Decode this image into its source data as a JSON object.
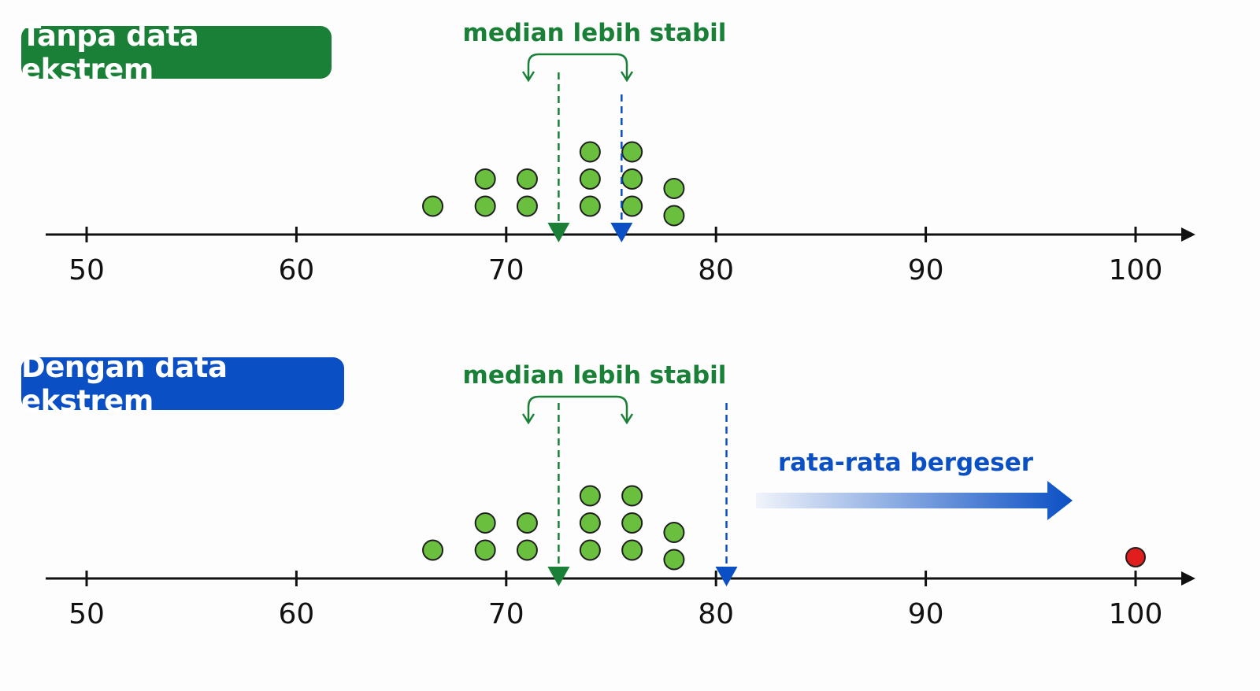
{
  "colors": {
    "green": "#1a8038",
    "blue": "#0a4fc4",
    "dot_fill": "#6bbf3f",
    "dot_stroke": "#1f1f1f",
    "outlier": "#e01e1e",
    "axis": "#111111"
  },
  "chart_data": [
    {
      "type": "scatter",
      "style": "dot-plot",
      "panel_label": "Tanpa data ekstrem",
      "annotation": "median lebih stabil",
      "xlim": [
        50,
        100
      ],
      "ticks": [
        50,
        60,
        70,
        80,
        90,
        100
      ],
      "tick_labels": [
        "50",
        "60",
        "70",
        "80",
        "90",
        "100"
      ],
      "points": [
        {
          "x": 66.5,
          "n": 1
        },
        {
          "x": 69,
          "n": 2
        },
        {
          "x": 71,
          "n": 2
        },
        {
          "x": 74,
          "n": 3
        },
        {
          "x": 76,
          "n": 3
        },
        {
          "x": 78,
          "n": 2
        }
      ],
      "median": 72.5,
      "mean": 75.5
    },
    {
      "type": "scatter",
      "style": "dot-plot",
      "panel_label": "Dengan data ekstrem",
      "annotation": "median lebih stabil",
      "shift_annotation": "rata-rata bergeser",
      "xlim": [
        50,
        100
      ],
      "ticks": [
        50,
        60,
        70,
        80,
        90,
        100
      ],
      "tick_labels": [
        "50",
        "60",
        "70",
        "80",
        "90",
        "100"
      ],
      "points": [
        {
          "x": 66.5,
          "n": 1
        },
        {
          "x": 69,
          "n": 2
        },
        {
          "x": 71,
          "n": 2
        },
        {
          "x": 74,
          "n": 3
        },
        {
          "x": 76,
          "n": 3
        },
        {
          "x": 78,
          "n": 2
        }
      ],
      "outlier": {
        "x": 100
      },
      "median": 72.5,
      "mean": 80.5
    }
  ]
}
